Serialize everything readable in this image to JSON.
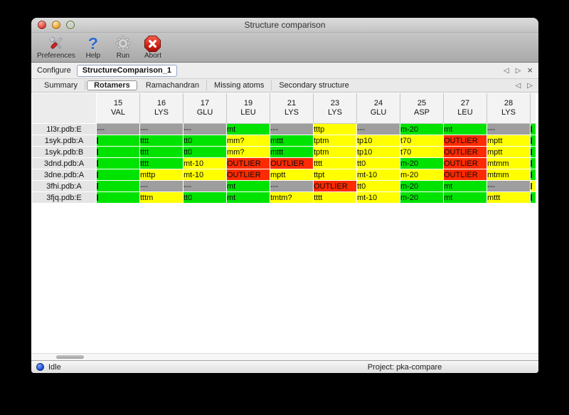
{
  "window": {
    "title": "Structure comparison"
  },
  "toolbar": {
    "items": [
      {
        "label": "Preferences"
      },
      {
        "label": "Help"
      },
      {
        "label": "Run"
      },
      {
        "label": "Abort"
      }
    ]
  },
  "configure": {
    "label": "Configure",
    "value": "StructureComparison_1",
    "back": "◁",
    "forward": "▷",
    "close": "×"
  },
  "tabs": {
    "items": [
      "Summary",
      "Rotamers",
      "Ramachandran",
      "Missing atoms",
      "Secondary structure"
    ],
    "selected_index": 1,
    "back": "◁",
    "forward": "▷"
  },
  "table": {
    "columns": [
      {
        "num": "15",
        "res": "VAL"
      },
      {
        "num": "16",
        "res": "LYS"
      },
      {
        "num": "17",
        "res": "GLU"
      },
      {
        "num": "19",
        "res": "LEU"
      },
      {
        "num": "21",
        "res": "LYS"
      },
      {
        "num": "23",
        "res": "LYS"
      },
      {
        "num": "24",
        "res": "GLU"
      },
      {
        "num": "25",
        "res": "ASP"
      },
      {
        "num": "27",
        "res": "LEU"
      },
      {
        "num": "28",
        "res": "LYS"
      }
    ],
    "rows": [
      {
        "label": "1l3r.pdb:E",
        "cells": [
          {
            "t": "---",
            "c": "gray"
          },
          {
            "t": "---",
            "c": "gray"
          },
          {
            "t": "---",
            "c": "gray"
          },
          {
            "t": "mt",
            "c": "green"
          },
          {
            "t": "---",
            "c": "gray"
          },
          {
            "t": "tttp",
            "c": "yellow"
          },
          {
            "t": "---",
            "c": "gray"
          },
          {
            "t": "m-20",
            "c": "green"
          },
          {
            "t": "mt",
            "c": "green"
          },
          {
            "t": "---",
            "c": "gray"
          },
          {
            "t": "",
            "c": "green",
            "clip": true
          }
        ]
      },
      {
        "label": "1syk.pdb:A",
        "cells": [
          {
            "t": "",
            "c": "green",
            "clip": true
          },
          {
            "t": "tttt",
            "c": "green"
          },
          {
            "t": "tt0",
            "c": "green"
          },
          {
            "t": "mm?",
            "c": "yellow"
          },
          {
            "t": "mttt",
            "c": "green"
          },
          {
            "t": "tptm",
            "c": "yellow"
          },
          {
            "t": "tp10",
            "c": "yellow"
          },
          {
            "t": "t70",
            "c": "yellow"
          },
          {
            "t": "OUTLIER",
            "c": "red"
          },
          {
            "t": "mptt",
            "c": "yellow"
          },
          {
            "t": "",
            "c": "green",
            "clip": true
          }
        ]
      },
      {
        "label": "1syk.pdb:B",
        "cells": [
          {
            "t": "",
            "c": "green",
            "clip": true
          },
          {
            "t": "tttt",
            "c": "green"
          },
          {
            "t": "tt0",
            "c": "green"
          },
          {
            "t": "mm?",
            "c": "yellow"
          },
          {
            "t": "mttt",
            "c": "green"
          },
          {
            "t": "tptm",
            "c": "yellow"
          },
          {
            "t": "tp10",
            "c": "yellow"
          },
          {
            "t": "t70",
            "c": "yellow"
          },
          {
            "t": "OUTLIER",
            "c": "red"
          },
          {
            "t": "mptt",
            "c": "yellow"
          },
          {
            "t": "",
            "c": "green",
            "clip": true
          }
        ]
      },
      {
        "label": "3dnd.pdb:A",
        "cells": [
          {
            "t": "",
            "c": "green",
            "clip": true
          },
          {
            "t": "tttt",
            "c": "green"
          },
          {
            "t": "mt-10",
            "c": "yellow"
          },
          {
            "t": "OUTLIER",
            "c": "red"
          },
          {
            "t": "OUTLIER",
            "c": "red"
          },
          {
            "t": "tttt",
            "c": "yellow"
          },
          {
            "t": "tt0",
            "c": "yellow"
          },
          {
            "t": "m-20",
            "c": "green"
          },
          {
            "t": "OUTLIER",
            "c": "red"
          },
          {
            "t": "mtmm",
            "c": "yellow"
          },
          {
            "t": "",
            "c": "green",
            "clip": true
          }
        ]
      },
      {
        "label": "3dne.pdb:A",
        "cells": [
          {
            "t": "",
            "c": "green",
            "clip": true
          },
          {
            "t": "mttp",
            "c": "yellow"
          },
          {
            "t": "mt-10",
            "c": "yellow"
          },
          {
            "t": "OUTLIER",
            "c": "red"
          },
          {
            "t": "mptt",
            "c": "yellow"
          },
          {
            "t": "ttpt",
            "c": "yellow"
          },
          {
            "t": "mt-10",
            "c": "yellow"
          },
          {
            "t": "m-20",
            "c": "yellow"
          },
          {
            "t": "OUTLIER",
            "c": "red"
          },
          {
            "t": "mtmm",
            "c": "yellow"
          },
          {
            "t": "",
            "c": "green",
            "clip": true
          }
        ]
      },
      {
        "label": "3fhi.pdb:A",
        "cells": [
          {
            "t": "",
            "c": "green",
            "clip": true
          },
          {
            "t": "---",
            "c": "gray"
          },
          {
            "t": "---",
            "c": "gray"
          },
          {
            "t": "mt",
            "c": "green"
          },
          {
            "t": "---",
            "c": "gray"
          },
          {
            "t": "OUTLIER",
            "c": "red"
          },
          {
            "t": "tt0",
            "c": "yellow"
          },
          {
            "t": "m-20",
            "c": "green"
          },
          {
            "t": "mt",
            "c": "green"
          },
          {
            "t": "---",
            "c": "gray"
          },
          {
            "t": "",
            "c": "yellow",
            "clip": true
          }
        ]
      },
      {
        "label": "3fjq.pdb:E",
        "cells": [
          {
            "t": "",
            "c": "green",
            "clip": true
          },
          {
            "t": "tttm",
            "c": "yellow"
          },
          {
            "t": "tt0",
            "c": "green"
          },
          {
            "t": "mt",
            "c": "green"
          },
          {
            "t": "tmtm?",
            "c": "yellow"
          },
          {
            "t": "tttt",
            "c": "yellow"
          },
          {
            "t": "mt-10",
            "c": "yellow"
          },
          {
            "t": "m-20",
            "c": "green"
          },
          {
            "t": "mt",
            "c": "green"
          },
          {
            "t": "mttt",
            "c": "yellow"
          },
          {
            "t": "",
            "c": "green",
            "clip": true
          }
        ]
      }
    ]
  },
  "status": {
    "state": "Idle",
    "project": "Project: pka-compare"
  },
  "colors": {
    "green": "#00e300",
    "yellow": "#ffff00",
    "red": "#ff2b00",
    "gray": "#9e9e9e",
    "status_dot": "#1f4fd8"
  }
}
